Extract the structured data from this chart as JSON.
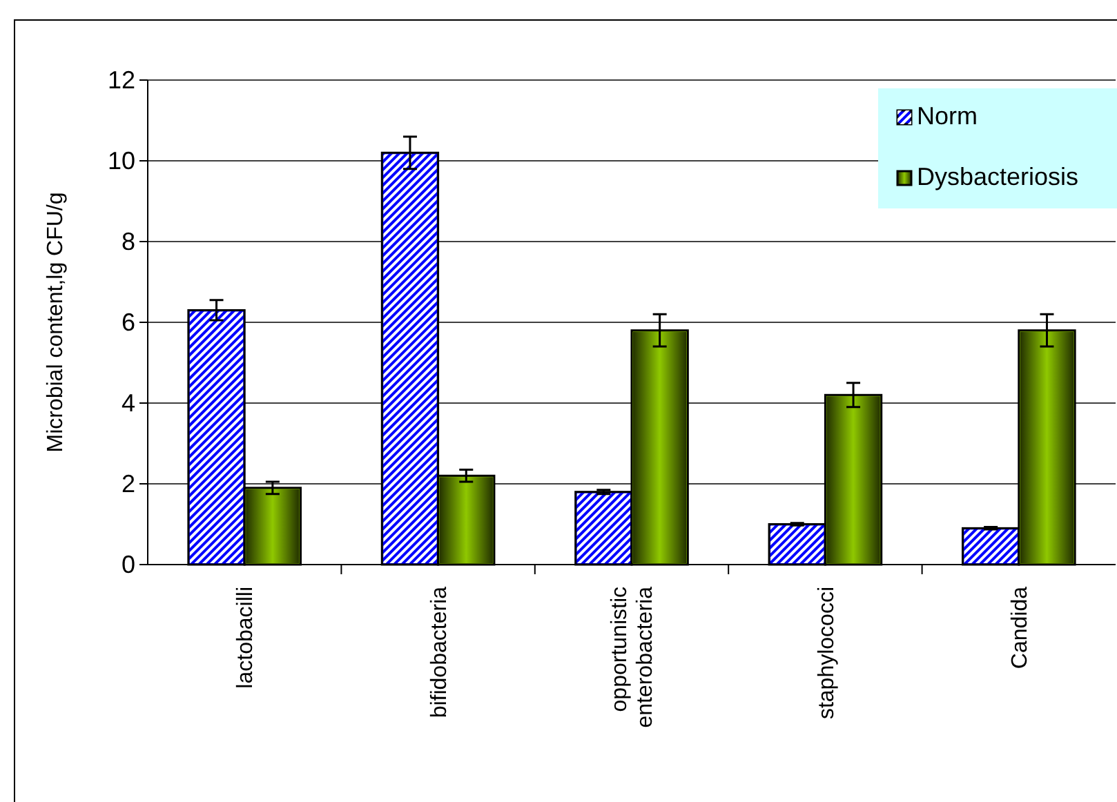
{
  "chart_data": {
    "type": "bar",
    "ylabel": "Microbial content,lg CFU/g",
    "categories": [
      "lactobacilli",
      "bifidobacteria",
      "opportunistic enterobacteria",
      "staphylococci",
      "Candida"
    ],
    "series": [
      {
        "name": "Norm",
        "color": "#0000ff",
        "values": [
          6.3,
          10.2,
          1.8,
          1.0,
          0.9
        ],
        "errors": [
          0.25,
          0.4,
          0.05,
          0.03,
          0.03
        ]
      },
      {
        "name": "Dysbacteriosis",
        "color": "#8fc800",
        "values": [
          1.9,
          2.2,
          5.8,
          4.2,
          5.8
        ],
        "errors": [
          0.15,
          0.15,
          0.4,
          0.3,
          0.4
        ]
      }
    ],
    "ylim": [
      0,
      12
    ],
    "yticks": [
      0,
      2,
      4,
      6,
      8,
      10,
      12
    ],
    "grid": "y",
    "legend": "top right"
  }
}
